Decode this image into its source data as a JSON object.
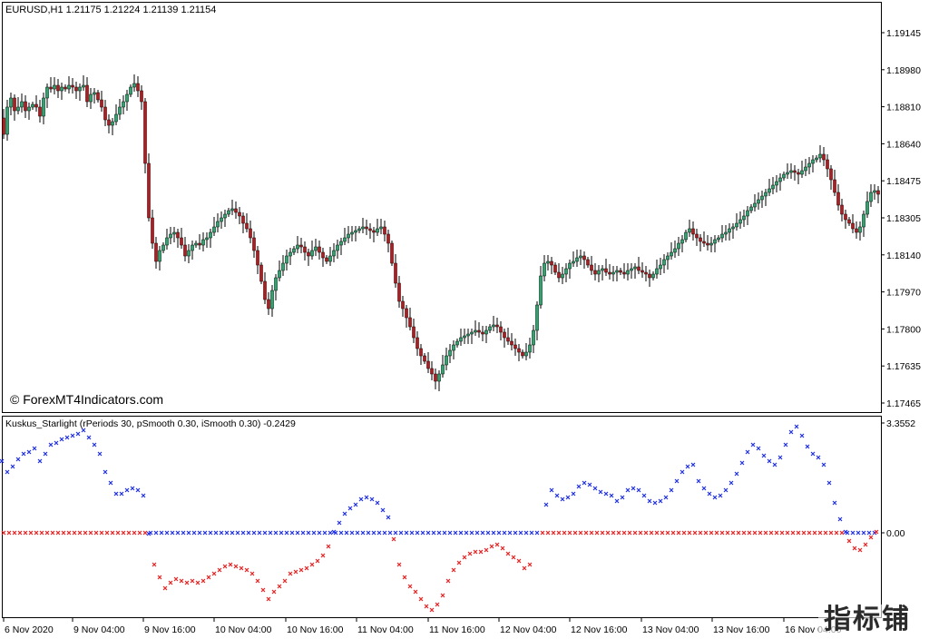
{
  "main_chart": {
    "title": "EURUSD,H1  1.21175 1.21224 1.21139 1.21154",
    "watermark": "© ForexMT4Indicators.com",
    "price_ticks": [
      "1.19145",
      "1.18980",
      "1.18810",
      "1.18640",
      "1.18475",
      "1.18305",
      "1.18140",
      "1.17970",
      "1.17800",
      "1.17635",
      "1.17465"
    ],
    "bull_color": "#26a96c",
    "bear_color": "#c0161b"
  },
  "indicator": {
    "title": "Kuskus_Starlight  (rPeriods 30, pSmooth 0.30, iSmooth 0.30)   -0.2429",
    "top_value": "3.3552",
    "zero_label": "0.00",
    "positive_color": "#1f2ff0",
    "negative_color": "#f01f1f"
  },
  "time_axis": {
    "labels": [
      "6 Nov 2020",
      "9 Nov 04:00",
      "9 Nov 16:00",
      "10 Nov 04:00",
      "10 Nov 16:00",
      "11 Nov 04:00",
      "11 Nov 16:00",
      "12 Nov 04:00",
      "12 Nov 16:00",
      "13 Nov 04:00",
      "13 Nov 16:00",
      "16 Nov 04:00"
    ]
  },
  "brand_watermark": "指标铺"
}
